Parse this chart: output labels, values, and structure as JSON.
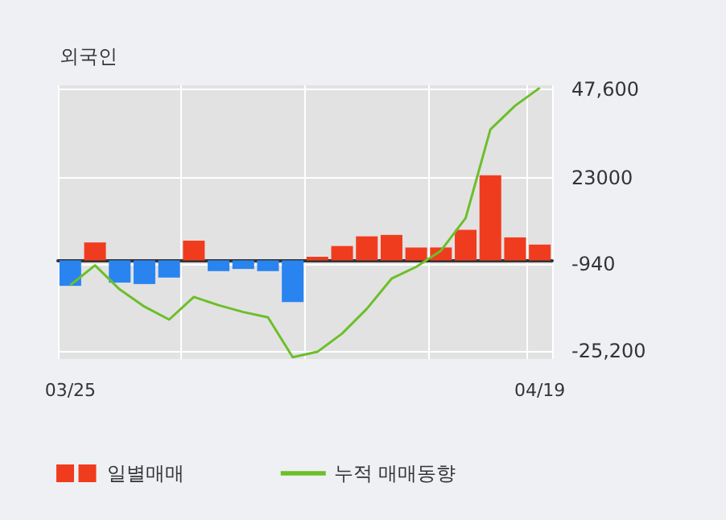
{
  "chart_data": {
    "type": "bar",
    "title": "외국인",
    "categories": [
      "03/25",
      null,
      null,
      null,
      null,
      null,
      null,
      null,
      null,
      null,
      null,
      null,
      null,
      null,
      null,
      null,
      null,
      null,
      null,
      "04/19"
    ],
    "series": [
      {
        "name": "일별매매",
        "colors": [
          "#2a84f0",
          "#f03c1e",
          "#2a84f0",
          "#2a84f0",
          "#2a84f0",
          "#f03c1e",
          "#2a84f0",
          "#2a84f0",
          "#2a84f0",
          "#2a84f0",
          "#f03c1e",
          "#f03c1e",
          "#f03c1e",
          "#f03c1e",
          "#f03c1e",
          "#f03c1e",
          "#f03c1e",
          "#f03c1e",
          "#f03c1e",
          "#f03c1e"
        ],
        "values": [
          -7100,
          5000,
          -6200,
          -6600,
          -4800,
          5500,
          -3000,
          -2400,
          -3000,
          -11600,
          1000,
          4000,
          6700,
          7100,
          3600,
          3600,
          8500,
          23700,
          6400,
          4400
        ]
      },
      {
        "name": "누적 매매동향",
        "type": "line",
        "color": "#6cbf2a",
        "values": [
          -6900,
          -1400,
          -8100,
          -12900,
          -16500,
          -10200,
          -12500,
          -14400,
          -15900,
          -27000,
          -25500,
          -20400,
          -13500,
          -5100,
          -1800,
          2700,
          11800,
          36500,
          43100,
          48100
        ]
      }
    ],
    "ylim": [
      -27500,
      48800
    ],
    "yticks": [
      {
        "value": 47600,
        "label": "47,600"
      },
      23000,
      -940,
      {
        "value": -25200,
        "label": "-25,200"
      }
    ],
    "grid": true,
    "legend": "bottom",
    "marker": "none"
  }
}
